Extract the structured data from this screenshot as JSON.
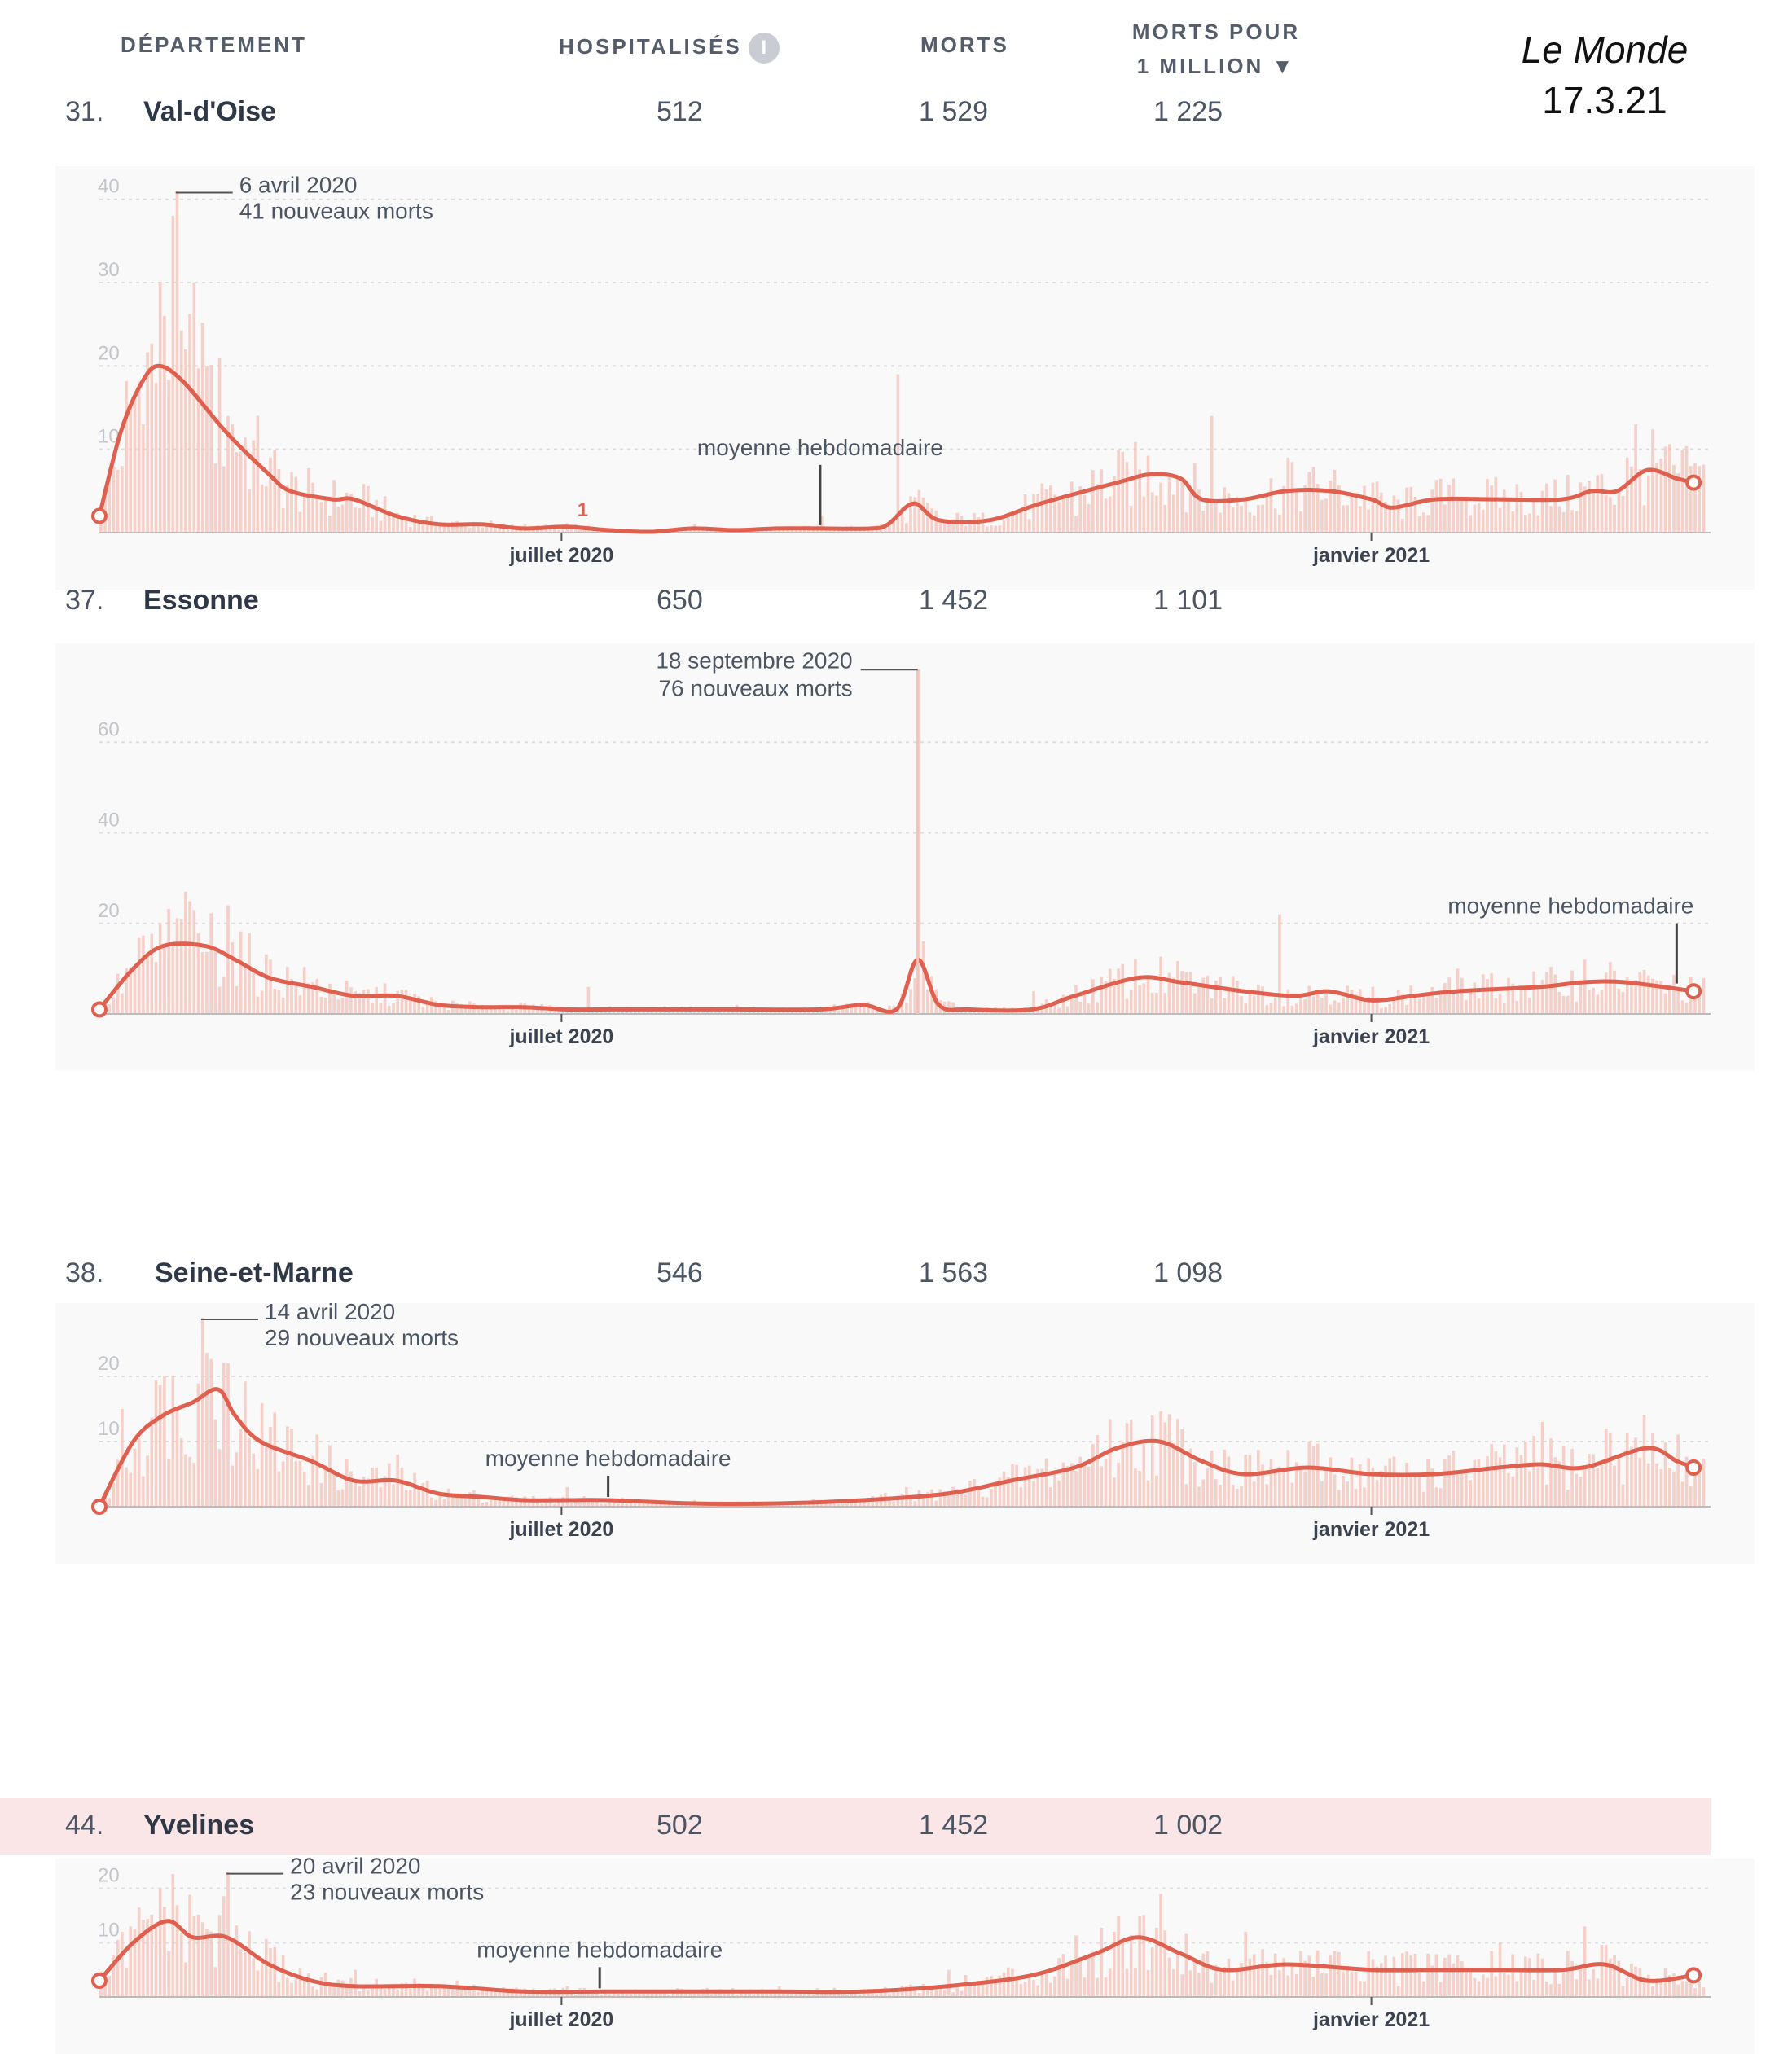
{
  "header": {
    "col_departement": "DÉPARTEMENT",
    "col_hospitalises": "HOSPITALISÉS",
    "info_icon": "i",
    "col_morts": "MORTS",
    "col_morts_million_l1": "MORTS POUR",
    "col_morts_million_l2": "1 MILLION ▼"
  },
  "brand": {
    "name": "Le Monde",
    "date": "17.3.21"
  },
  "colors": {
    "line": "#e06050",
    "bar": "#f3c2b8",
    "grid": "#dddddd",
    "axis": "#bbbbbb",
    "highlight": "#fae6e6"
  },
  "chart_data": [
    {
      "type": "bar",
      "rank": "31.",
      "department": "Val-d'Oise",
      "hospitalises": "512",
      "morts": "1 529",
      "morts_million": "1 225",
      "ylim": [
        0,
        43
      ],
      "yticks": [
        {
          "v": 10,
          "label": "10"
        },
        {
          "v": 20,
          "label": "20"
        },
        {
          "v": 30,
          "label": "30"
        },
        {
          "v": 40,
          "label": "40"
        }
      ],
      "xlim": [
        0,
        380
      ],
      "xticks": [
        {
          "x": 109,
          "label": "juillet 2020"
        },
        {
          "x": 300,
          "label": "janvier 2021"
        }
      ],
      "bar_heights": [
        [
          0,
          2
        ],
        [
          5,
          8
        ],
        [
          10,
          13
        ],
        [
          15,
          26
        ],
        [
          17,
          38
        ],
        [
          18,
          41
        ],
        [
          20,
          22
        ],
        [
          22,
          30
        ],
        [
          25,
          20
        ],
        [
          30,
          14
        ],
        [
          40,
          9
        ],
        [
          50,
          6
        ],
        [
          60,
          3
        ],
        [
          80,
          1
        ],
        [
          100,
          1
        ],
        [
          112,
          1
        ],
        [
          140,
          1
        ],
        [
          170,
          2
        ],
        [
          188,
          19
        ],
        [
          200,
          1
        ],
        [
          230,
          2
        ],
        [
          250,
          6
        ],
        [
          262,
          14
        ],
        [
          280,
          9
        ],
        [
          300,
          6
        ],
        [
          320,
          4
        ],
        [
          340,
          5
        ],
        [
          360,
          9
        ],
        [
          362,
          13
        ],
        [
          375,
          8
        ]
      ],
      "moving_average": [
        [
          0,
          2
        ],
        [
          5,
          12
        ],
        [
          10,
          18
        ],
        [
          14,
          20
        ],
        [
          20,
          18
        ],
        [
          30,
          12
        ],
        [
          40,
          7
        ],
        [
          45,
          5
        ],
        [
          55,
          4
        ],
        [
          60,
          4
        ],
        [
          70,
          2
        ],
        [
          80,
          1
        ],
        [
          90,
          1
        ],
        [
          100,
          0.5
        ],
        [
          110,
          0.7
        ],
        [
          120,
          0.3
        ],
        [
          130,
          0.1
        ],
        [
          140,
          0.5
        ],
        [
          150,
          0.3
        ],
        [
          160,
          0.5
        ],
        [
          170,
          0.5
        ],
        [
          182,
          0.5
        ],
        [
          186,
          1
        ],
        [
          192,
          3.5
        ],
        [
          198,
          1.5
        ],
        [
          210,
          1.5
        ],
        [
          222,
          3.5
        ],
        [
          240,
          6
        ],
        [
          248,
          7
        ],
        [
          255,
          6.5
        ],
        [
          260,
          4
        ],
        [
          270,
          4
        ],
        [
          280,
          5
        ],
        [
          290,
          5
        ],
        [
          300,
          4
        ],
        [
          305,
          3
        ],
        [
          315,
          4
        ],
        [
          330,
          4
        ],
        [
          345,
          4
        ],
        [
          352,
          5
        ],
        [
          358,
          5
        ],
        [
          365,
          7.5
        ],
        [
          372,
          6.5
        ],
        [
          376,
          6
        ]
      ],
      "annotations": [
        {
          "x": 18,
          "y": 41,
          "line1": "6 avril 2020",
          "line2": "41 nouveaux morts",
          "side": "right"
        },
        {
          "x": 170,
          "y": 0.5,
          "line1": "moyenne hebdomadaire",
          "line2": "",
          "side": "above"
        },
        {
          "x": 114,
          "y": 1,
          "line1": "1",
          "line2": "",
          "side": "marker"
        }
      ]
    },
    {
      "type": "bar",
      "rank": "37.",
      "department": "Essonne",
      "hospitalises": "650",
      "morts": "1 452",
      "morts_million": "1 101",
      "ylim": [
        0,
        80
      ],
      "yticks": [
        {
          "v": 20,
          "label": "20"
        },
        {
          "v": 40,
          "label": "40"
        },
        {
          "v": 60,
          "label": "60"
        }
      ],
      "xlim": [
        0,
        380
      ],
      "xticks": [
        {
          "x": 109,
          "label": "juillet 2020"
        },
        {
          "x": 300,
          "label": "janvier 2021"
        }
      ],
      "bar_heights": [
        [
          0,
          2
        ],
        [
          20,
          27
        ],
        [
          30,
          24
        ],
        [
          40,
          12
        ],
        [
          60,
          5
        ],
        [
          90,
          2
        ],
        [
          115,
          6
        ],
        [
          150,
          2
        ],
        [
          180,
          2
        ],
        [
          193,
          76
        ],
        [
          220,
          5
        ],
        [
          240,
          10
        ],
        [
          260,
          8
        ],
        [
          278,
          22
        ],
        [
          300,
          6
        ],
        [
          320,
          10
        ],
        [
          350,
          12
        ],
        [
          372,
          6
        ]
      ],
      "moving_average": [
        [
          0,
          1
        ],
        [
          8,
          10
        ],
        [
          15,
          15
        ],
        [
          25,
          15
        ],
        [
          32,
          12
        ],
        [
          40,
          8
        ],
        [
          50,
          6
        ],
        [
          60,
          4
        ],
        [
          70,
          4
        ],
        [
          80,
          2
        ],
        [
          90,
          1.5
        ],
        [
          100,
          1.5
        ],
        [
          110,
          1
        ],
        [
          120,
          1
        ],
        [
          130,
          1
        ],
        [
          150,
          1
        ],
        [
          170,
          1
        ],
        [
          180,
          2
        ],
        [
          188,
          1
        ],
        [
          193,
          12
        ],
        [
          198,
          2
        ],
        [
          205,
          1
        ],
        [
          220,
          1
        ],
        [
          230,
          4
        ],
        [
          245,
          8
        ],
        [
          255,
          7
        ],
        [
          270,
          5
        ],
        [
          282,
          4
        ],
        [
          290,
          5
        ],
        [
          300,
          3
        ],
        [
          310,
          4
        ],
        [
          320,
          5
        ],
        [
          340,
          6
        ],
        [
          350,
          7
        ],
        [
          360,
          7
        ],
        [
          376,
          5
        ]
      ],
      "annotations": [
        {
          "x": 193,
          "y": 76,
          "line1": "18 septembre 2020",
          "line2": "76 nouveaux morts",
          "side": "left"
        },
        {
          "x": 372,
          "y": 6,
          "line1": "moyenne hebdomadaire",
          "line2": "",
          "side": "above"
        }
      ]
    },
    {
      "type": "bar",
      "rank": "38.",
      "department": "Seine-et-Marne",
      "hospitalises": "546",
      "morts": "1 563",
      "morts_million": "1 098",
      "ylim": [
        0,
        30
      ],
      "yticks": [
        {
          "v": 10,
          "label": "10"
        },
        {
          "v": 20,
          "label": "20"
        }
      ],
      "xlim": [
        0,
        380
      ],
      "xticks": [
        {
          "x": 109,
          "label": "juillet 2020"
        },
        {
          "x": 300,
          "label": "janvier 2021"
        }
      ],
      "bar_heights": [
        [
          5,
          15
        ],
        [
          15,
          20
        ],
        [
          24,
          29
        ],
        [
          30,
          22
        ],
        [
          45,
          12
        ],
        [
          70,
          8
        ],
        [
          110,
          3
        ],
        [
          140,
          1
        ],
        [
          190,
          3
        ],
        [
          235,
          11
        ],
        [
          248,
          14
        ],
        [
          270,
          8
        ],
        [
          300,
          6
        ],
        [
          340,
          13
        ],
        [
          355,
          12
        ],
        [
          370,
          6
        ]
      ],
      "moving_average": [
        [
          0,
          0
        ],
        [
          8,
          10
        ],
        [
          15,
          14
        ],
        [
          22,
          16
        ],
        [
          28,
          18
        ],
        [
          32,
          14
        ],
        [
          38,
          10
        ],
        [
          50,
          7
        ],
        [
          60,
          4
        ],
        [
          70,
          4
        ],
        [
          80,
          2
        ],
        [
          90,
          1.5
        ],
        [
          100,
          1
        ],
        [
          110,
          1
        ],
        [
          120,
          1
        ],
        [
          140,
          0.5
        ],
        [
          160,
          0.5
        ],
        [
          180,
          1
        ],
        [
          200,
          2
        ],
        [
          215,
          4
        ],
        [
          230,
          6
        ],
        [
          240,
          9
        ],
        [
          250,
          10
        ],
        [
          260,
          7
        ],
        [
          270,
          5
        ],
        [
          285,
          6
        ],
        [
          300,
          5
        ],
        [
          315,
          5
        ],
        [
          330,
          6
        ],
        [
          340,
          6.5
        ],
        [
          350,
          6
        ],
        [
          365,
          9
        ],
        [
          372,
          7
        ],
        [
          376,
          6
        ]
      ],
      "annotations": [
        {
          "x": 24,
          "y": 29,
          "line1": "14 avril 2020",
          "line2": "29 nouveaux morts",
          "side": "right"
        },
        {
          "x": 120,
          "y": 1,
          "line1": "moyenne hebdomadaire",
          "line2": "",
          "side": "above"
        }
      ]
    },
    {
      "type": "bar",
      "rank": "44.",
      "department": "Yvelines",
      "hospitalises": "502",
      "morts": "1 452",
      "morts_million": "1 002",
      "ylim": [
        0,
        24
      ],
      "yticks": [
        {
          "v": 10,
          "label": "10"
        },
        {
          "v": 20,
          "label": "20"
        }
      ],
      "xlim": [
        0,
        380
      ],
      "xticks": [
        {
          "x": 109,
          "label": "juillet 2020"
        },
        {
          "x": 300,
          "label": "janvier 2021"
        }
      ],
      "bar_heights": [
        [
          5,
          12
        ],
        [
          14,
          20
        ],
        [
          22,
          15
        ],
        [
          30,
          23
        ],
        [
          40,
          9
        ],
        [
          60,
          5
        ],
        [
          110,
          2
        ],
        [
          160,
          2
        ],
        [
          200,
          5
        ],
        [
          240,
          15
        ],
        [
          250,
          19
        ],
        [
          270,
          12
        ],
        [
          300,
          7
        ],
        [
          330,
          10
        ],
        [
          350,
          13
        ],
        [
          370,
          4
        ]
      ],
      "moving_average": [
        [
          0,
          3
        ],
        [
          8,
          10
        ],
        [
          16,
          14
        ],
        [
          22,
          11
        ],
        [
          30,
          11
        ],
        [
          40,
          6
        ],
        [
          50,
          3
        ],
        [
          60,
          2
        ],
        [
          80,
          2
        ],
        [
          100,
          1
        ],
        [
          120,
          1
        ],
        [
          140,
          1
        ],
        [
          160,
          1
        ],
        [
          180,
          1
        ],
        [
          200,
          2
        ],
        [
          220,
          4
        ],
        [
          235,
          8
        ],
        [
          245,
          11
        ],
        [
          255,
          8
        ],
        [
          265,
          5
        ],
        [
          280,
          6
        ],
        [
          300,
          5
        ],
        [
          315,
          5
        ],
        [
          330,
          5
        ],
        [
          345,
          5
        ],
        [
          355,
          6
        ],
        [
          365,
          3
        ],
        [
          376,
          4
        ]
      ],
      "annotations": [
        {
          "x": 30,
          "y": 23,
          "line1": "20 avril 2020",
          "line2": "23 nouveaux morts",
          "side": "right"
        },
        {
          "x": 118,
          "y": 1,
          "line1": "moyenne hebdomadaire",
          "line2": "",
          "side": "above"
        }
      ]
    }
  ]
}
